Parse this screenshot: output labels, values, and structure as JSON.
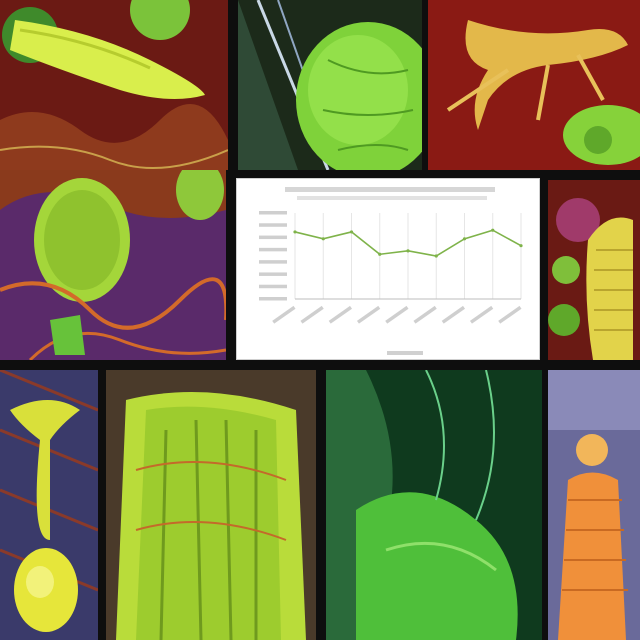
{
  "chart_data": {
    "type": "line",
    "title": "",
    "xlabel": "",
    "ylabel": "",
    "categories": [
      "",
      "",
      "",
      "",
      "",
      "",
      "",
      "",
      ""
    ],
    "series": [
      {
        "values": [
          0.78,
          0.7,
          0.78,
          0.52,
          0.56,
          0.5,
          0.7,
          0.8,
          0.62
        ]
      }
    ],
    "ylim": [
      0,
      1
    ],
    "grid": true,
    "line_color": "#7fb34a"
  },
  "colors": {
    "background": "#0e0e0e",
    "lime": "#b9e03a",
    "yellow": "#e9ef4a",
    "maroon": "#7a1616",
    "green": "#4fb93a",
    "orange": "#f29a2e"
  }
}
